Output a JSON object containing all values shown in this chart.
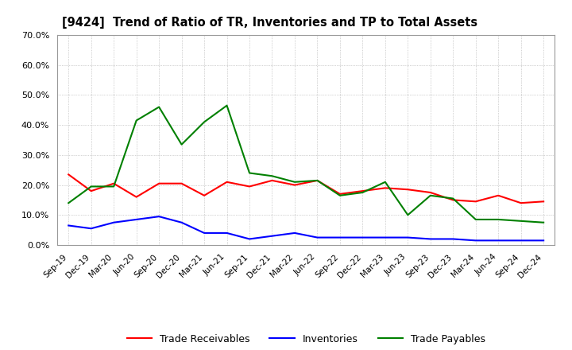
{
  "title": "[9424]  Trend of Ratio of TR, Inventories and TP to Total Assets",
  "x_labels": [
    "Sep-19",
    "Dec-19",
    "Mar-20",
    "Jun-20",
    "Sep-20",
    "Dec-20",
    "Mar-21",
    "Jun-21",
    "Sep-21",
    "Dec-21",
    "Mar-22",
    "Jun-22",
    "Sep-22",
    "Dec-22",
    "Mar-23",
    "Jun-23",
    "Sep-23",
    "Dec-23",
    "Mar-24",
    "Jun-24",
    "Sep-24",
    "Dec-24"
  ],
  "trade_receivables": [
    0.235,
    0.18,
    0.205,
    0.16,
    0.205,
    0.205,
    0.165,
    0.21,
    0.195,
    0.215,
    0.2,
    0.215,
    0.17,
    0.18,
    0.19,
    0.185,
    0.175,
    0.15,
    0.145,
    0.165,
    0.14,
    0.145
  ],
  "inventories": [
    0.065,
    0.055,
    0.075,
    0.085,
    0.095,
    0.075,
    0.04,
    0.04,
    0.02,
    0.03,
    0.04,
    0.025,
    0.025,
    0.025,
    0.025,
    0.025,
    0.02,
    0.02,
    0.015,
    0.015,
    0.015,
    0.015
  ],
  "trade_payables": [
    0.14,
    0.195,
    0.195,
    0.415,
    0.46,
    0.335,
    0.41,
    0.465,
    0.24,
    0.23,
    0.21,
    0.215,
    0.165,
    0.175,
    0.21,
    0.1,
    0.165,
    0.155,
    0.085,
    0.085,
    0.08,
    0.075
  ],
  "color_tr": "#FF0000",
  "color_inv": "#0000FF",
  "color_tp": "#008000",
  "ylim": [
    0.0,
    0.7
  ],
  "yticks": [
    0.0,
    0.1,
    0.2,
    0.3,
    0.4,
    0.5,
    0.6,
    0.7
  ],
  "bg_color": "#FFFFFF",
  "plot_bg_color": "#FFFFFF",
  "grid_color": "#AAAAAA",
  "legend_labels": [
    "Trade Receivables",
    "Inventories",
    "Trade Payables"
  ]
}
